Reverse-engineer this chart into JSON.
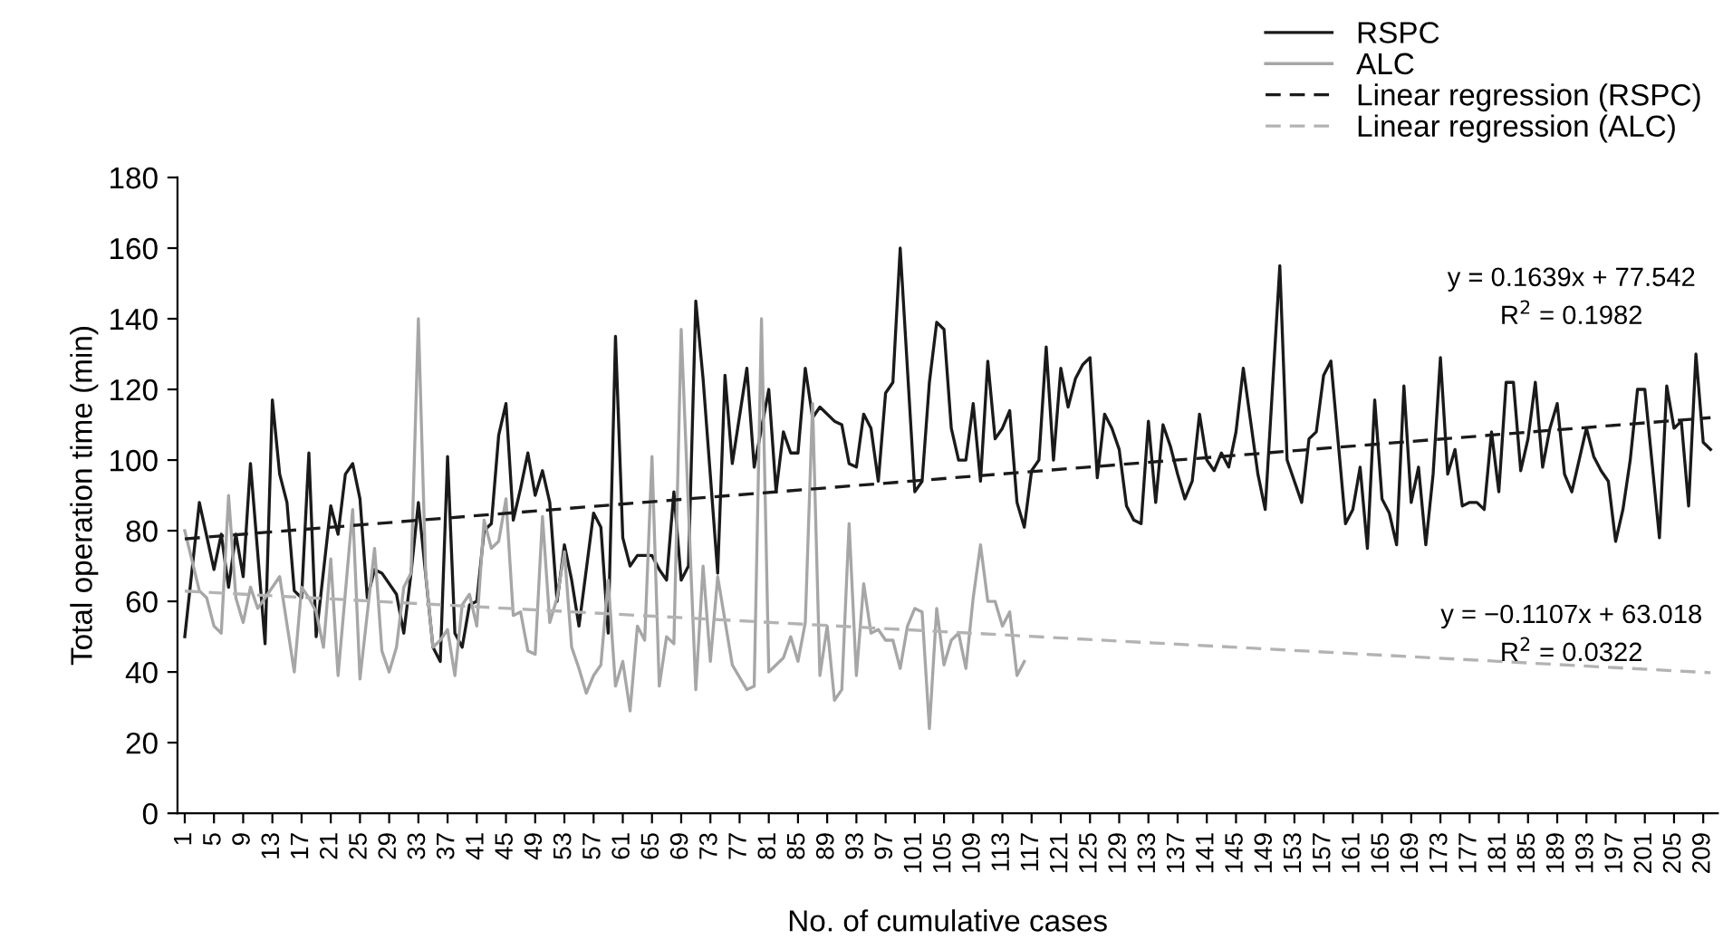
{
  "chart_data": {
    "type": "line",
    "xlabel": "No. of cumulative cases",
    "ylabel": "Total operation time (min)",
    "xlim": [
      0,
      211
    ],
    "xticks": [
      1,
      5,
      9,
      13,
      17,
      21,
      25,
      29,
      33,
      37,
      41,
      45,
      49,
      53,
      57,
      61,
      65,
      69,
      73,
      77,
      81,
      85,
      89,
      93,
      97,
      101,
      105,
      109,
      113,
      117,
      121,
      125,
      129,
      133,
      137,
      141,
      145,
      149,
      153,
      157,
      161,
      165,
      169,
      173,
      177,
      181,
      185,
      189,
      193,
      197,
      201,
      205,
      209
    ],
    "ylim": [
      0,
      180
    ],
    "yticks": [
      0,
      20,
      40,
      60,
      80,
      100,
      120,
      140,
      160,
      180
    ],
    "grid": false,
    "legend": "top right",
    "marker": "none",
    "series": [
      {
        "name": "RSPC",
        "color": "#1a1a1a",
        "line_style": "solid",
        "x": [
          1,
          3,
          5,
          6,
          7,
          8,
          9,
          10,
          12,
          13,
          14,
          15,
          16,
          17,
          18,
          19,
          21,
          22,
          23,
          24,
          25,
          26,
          27,
          28,
          30,
          31,
          32,
          33,
          35,
          36,
          37,
          38,
          39,
          40,
          41,
          42,
          43,
          44,
          45,
          46,
          47,
          48,
          49,
          50,
          51,
          52,
          53,
          54,
          55,
          56,
          57,
          58,
          59,
          60,
          61,
          62,
          63,
          64,
          65,
          66,
          67,
          68,
          69,
          70,
          71,
          72,
          74,
          75,
          76,
          78,
          79,
          81,
          82,
          83,
          84,
          85,
          86,
          87,
          88,
          90,
          91,
          92,
          93,
          94,
          95,
          96,
          97,
          98,
          99,
          101,
          102,
          103,
          104,
          105,
          106,
          107,
          108,
          109,
          110,
          111,
          112,
          113,
          114,
          115,
          116,
          117,
          118,
          119,
          120,
          121,
          122,
          123,
          124,
          125,
          126,
          127,
          128,
          129,
          130,
          131,
          132,
          133,
          134,
          135,
          136,
          137,
          138,
          139,
          140,
          141,
          142,
          143,
          144,
          145,
          146,
          147,
          148,
          149,
          151,
          152,
          153,
          154,
          155,
          156,
          157,
          158,
          159,
          160,
          161,
          162,
          163,
          164,
          165,
          166,
          167,
          168,
          169,
          170,
          171,
          172,
          173,
          174,
          175,
          176,
          177,
          178,
          179,
          180,
          181,
          182,
          183,
          184,
          185,
          186,
          187,
          188,
          189,
          190,
          191,
          193,
          194,
          195,
          196,
          197,
          198,
          199,
          200,
          201,
          202,
          203,
          204,
          205,
          206,
          207,
          208,
          209,
          210
        ],
        "values": [
          50,
          88,
          69,
          79,
          64,
          79,
          67,
          99,
          48,
          117,
          96,
          88,
          63,
          61,
          102,
          50,
          87,
          79,
          96,
          99,
          89,
          61,
          69,
          68,
          62,
          51,
          68,
          88,
          47,
          43,
          101,
          51,
          47,
          59,
          60,
          80,
          82,
          107,
          116,
          83,
          92,
          102,
          90,
          97,
          88,
          60,
          76,
          66,
          53,
          69,
          85,
          81,
          51,
          135,
          78,
          70,
          73,
          73,
          73,
          69,
          66,
          91,
          66,
          70,
          145,
          123,
          68,
          124,
          99,
          126,
          98,
          120,
          91,
          108,
          102,
          102,
          126,
          112,
          115,
          111,
          110,
          99,
          98,
          113,
          109,
          94,
          119,
          122,
          160,
          91,
          94,
          122,
          139,
          137,
          109,
          100,
          100,
          116,
          94,
          128,
          106,
          109,
          114,
          88,
          81,
          97,
          100,
          132,
          100,
          126,
          115,
          123,
          127,
          129,
          95,
          113,
          109,
          103,
          87,
          83,
          82,
          111,
          88,
          110,
          104,
          96,
          89,
          94,
          113,
          100,
          97,
          102,
          98,
          108,
          126,
          111,
          96,
          86,
          155,
          100,
          94,
          88,
          106,
          108,
          124,
          128,
          105,
          82,
          86,
          98,
          75,
          117,
          89,
          85,
          76,
          121,
          88,
          98,
          76,
          96,
          129,
          96,
          103,
          87,
          88,
          88,
          86,
          108,
          91,
          122,
          122,
          97,
          106,
          122,
          98,
          109,
          116,
          96,
          91,
          109,
          101,
          97,
          94,
          77,
          86,
          100,
          120,
          120,
          99,
          78,
          121,
          109,
          111,
          87,
          130,
          105,
          103
        ]
      },
      {
        "name": "ALC",
        "color": "#a6a6a6",
        "line_style": "solid",
        "x": [
          1,
          3,
          4,
          5,
          6,
          7,
          8,
          9,
          10,
          11,
          13,
          14,
          16,
          17,
          18,
          19,
          20,
          21,
          22,
          24,
          25,
          27,
          28,
          29,
          30,
          31,
          32,
          33,
          34,
          35,
          36,
          37,
          38,
          39,
          40,
          41,
          42,
          43,
          44,
          45,
          46,
          47,
          48,
          49,
          50,
          51,
          52,
          53,
          54,
          55,
          56,
          57,
          58,
          59,
          60,
          61,
          62,
          63,
          64,
          65,
          66,
          67,
          68,
          69,
          71,
          72,
          73,
          74,
          76,
          78,
          79,
          80,
          81,
          82,
          83,
          84,
          85,
          86,
          87,
          88,
          89,
          90,
          91,
          92,
          93,
          94,
          95,
          96,
          97,
          98,
          99,
          100,
          101,
          102,
          103,
          104,
          105,
          106,
          107,
          108,
          109,
          110,
          111,
          112,
          113,
          114,
          115,
          116
        ],
        "values": [
          80,
          63,
          61,
          53,
          51,
          90,
          61,
          54,
          64,
          58,
          64,
          67,
          40,
          64,
          61,
          57,
          47,
          72,
          39,
          86,
          38,
          75,
          46,
          40,
          47,
          64,
          68,
          140,
          68,
          47,
          49,
          52,
          39,
          59,
          62,
          53,
          83,
          75,
          77,
          89,
          56,
          57,
          46,
          45,
          84,
          54,
          61,
          74,
          47,
          41,
          34,
          39,
          42,
          66,
          36,
          43,
          29,
          53,
          49,
          101,
          36,
          50,
          48,
          137,
          35,
          70,
          43,
          67,
          42,
          35,
          36,
          140,
          40,
          42,
          44,
          50,
          43,
          54,
          116,
          39,
          53,
          32,
          35,
          82,
          39,
          65,
          51,
          52,
          49,
          49,
          41,
          53,
          58,
          57,
          24,
          58,
          42,
          49,
          51,
          41,
          61,
          76,
          60,
          60,
          53,
          57,
          39,
          43
        ]
      },
      {
        "name": "Linear regression (RSPC)",
        "color": "#1a1a1a",
        "line_style": "dashed",
        "x": [
          1,
          210
        ],
        "values": [
          77.7,
          112.0
        ]
      },
      {
        "name": "Linear regression (ALC)",
        "color": "#b3b3b3",
        "line_style": "dashed",
        "x": [
          1,
          210
        ],
        "values": [
          62.9,
          39.8
        ]
      }
    ],
    "annotations": [
      "y = 0.1639x + 77.542",
      "R$^{2}$ = 0.1982",
      "y = −0.1107x + 63.018",
      "R$^{2}$ = 0.0322"
    ]
  }
}
